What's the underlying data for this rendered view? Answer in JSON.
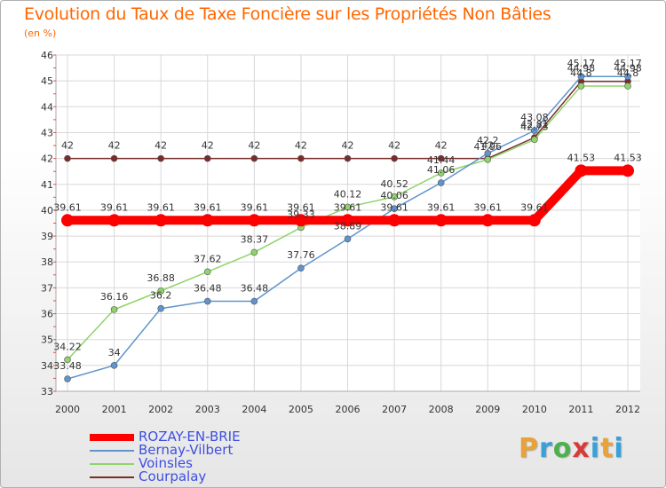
{
  "title": "Evolution du Taux de Taxe Foncière sur les Propriétés Non Bâties",
  "subtitle": "(en %)",
  "logo": {
    "letters": [
      "P",
      "r",
      "o",
      "x",
      "i",
      "t",
      "i"
    ],
    "colors": [
      "#e8a23a",
      "#3aa0d8",
      "#4db04d",
      "#d83a3a",
      "#3aa0d8",
      "#e8a23a",
      "#3aa0d8"
    ]
  },
  "chart_data": {
    "type": "line",
    "title": "Evolution du Taux de Taxe Foncière sur les Propriétés Non Bâties",
    "ylabel": "(en %)",
    "xlabel": "",
    "ylim": [
      33,
      46
    ],
    "yticks": [
      33,
      34,
      35,
      36,
      37,
      38,
      39,
      40,
      41,
      42,
      43,
      44,
      45,
      46
    ],
    "categories": [
      "2000",
      "2001",
      "2002",
      "2003",
      "2004",
      "2005",
      "2006",
      "2007",
      "2008",
      "2009",
      "2010",
      "2011",
      "2012"
    ],
    "grid": true,
    "series": [
      {
        "name": "Courpalay",
        "color": "#7a2c2c",
        "values": [
          42,
          42,
          42,
          42,
          42,
          42,
          42,
          42,
          42,
          42,
          42.81,
          44.98,
          44.98
        ],
        "labels": [
          "42",
          "42",
          "42",
          "42",
          "42",
          "42",
          "42",
          "42",
          "42",
          "42",
          "42.81",
          "44.98",
          "44.98"
        ]
      },
      {
        "name": "Voinsles",
        "color": "#8fd46a",
        "values": [
          34.22,
          36.16,
          36.88,
          37.62,
          38.37,
          39.33,
          40.12,
          40.52,
          41.44,
          41.96,
          42.73,
          44.8,
          44.8
        ],
        "labels": [
          "34.22",
          "36.16",
          "36.88",
          "37.62",
          "38.37",
          "39.33",
          "40.12",
          "40.52",
          "41.44",
          "41.96",
          "42.73",
          "44.8",
          "44.8"
        ]
      },
      {
        "name": "Bernay-Vilbert",
        "color": "#5f94cc",
        "values": [
          33.48,
          34,
          36.2,
          36.48,
          36.48,
          37.76,
          38.89,
          40.06,
          41.06,
          42.2,
          43.08,
          45.17,
          45.17
        ],
        "labels": [
          "33.48",
          "34",
          "36.2",
          "36.48",
          "36.48",
          "37.76",
          "38.89",
          "40.06",
          "41.06",
          "42.2",
          "43.08",
          "45.17",
          "45.17"
        ]
      },
      {
        "name": "ROZAY-EN-BRIE",
        "color": "#ff0000",
        "values": [
          39.61,
          39.61,
          39.61,
          39.61,
          39.61,
          39.61,
          39.61,
          39.61,
          39.61,
          39.61,
          39.61,
          41.53,
          41.53
        ],
        "labels": [
          "39.61",
          "39.61",
          "39.61",
          "39.61",
          "39.61",
          "39.61",
          "39.61",
          "39.61",
          "39.61",
          "39.61",
          "39.61",
          "41.53",
          "41.53"
        ]
      }
    ]
  },
  "legend": [
    {
      "name": "ROZAY-EN-BRIE",
      "color": "#ff0000"
    },
    {
      "name": "Bernay-Vilbert",
      "color": "#5f94cc"
    },
    {
      "name": "Voinsles",
      "color": "#8fd46a"
    },
    {
      "name": "Courpalay",
      "color": "#7a2c2c"
    }
  ]
}
